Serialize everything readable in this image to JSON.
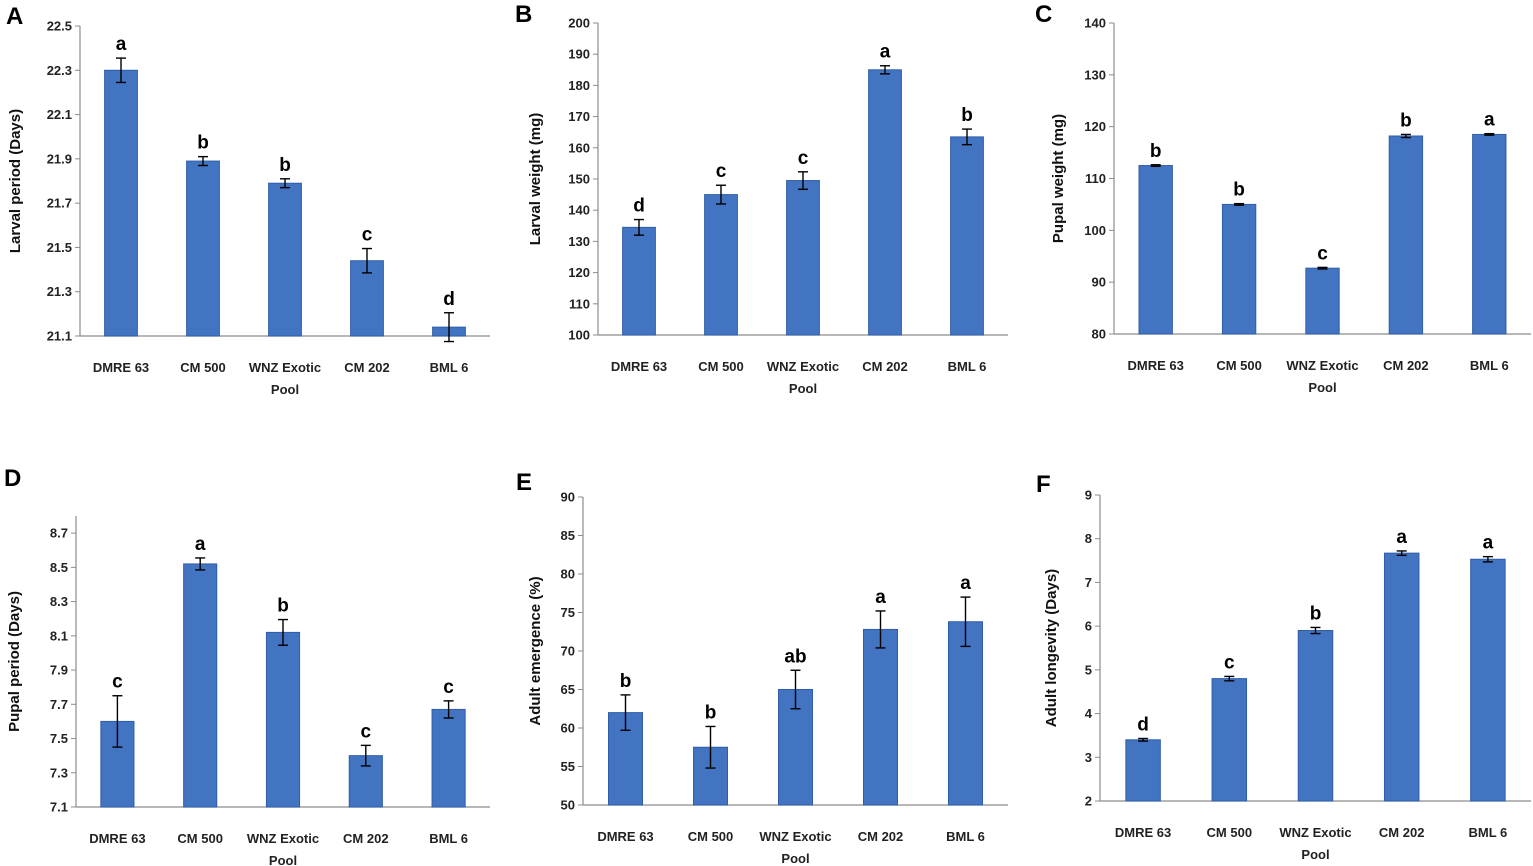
{
  "colors": {
    "bar": "#4274c2",
    "bar_edge": "#2f5ea8",
    "axis": "#8c8c8c",
    "error": "#000000"
  },
  "chart_data": [
    {
      "panel": "A",
      "type": "bar",
      "categories": [
        "DMRE 63",
        "CM 500",
        "WNZ Exotic Pool",
        "CM 202",
        "BML 6"
      ],
      "values": [
        22.3,
        21.89,
        21.79,
        21.44,
        21.14
      ],
      "errors": [
        0.055,
        0.02,
        0.02,
        0.055,
        0.065
      ],
      "significance": [
        "a",
        "b",
        "b",
        "c",
        "d"
      ],
      "ylabel": "Larval period (Days)",
      "ylim": [
        21.1,
        22.5
      ],
      "yticks": [
        21.1,
        21.3,
        21.5,
        21.7,
        21.9,
        22.1,
        22.3,
        22.5
      ],
      "ytick_labels": [
        "21.1",
        "21.3",
        "21.5",
        "21.7",
        "21.9",
        "22.1",
        "22.3",
        "22.5"
      ]
    },
    {
      "panel": "B",
      "type": "bar",
      "categories": [
        "DMRE 63",
        "CM 500",
        "WNZ Exotic Pool",
        "CM 202",
        "BML 6"
      ],
      "values": [
        134.5,
        145,
        149.5,
        185,
        163.5
      ],
      "errors": [
        2.5,
        3,
        2.8,
        1.3,
        2.5
      ],
      "significance": [
        "d",
        "c",
        "c",
        "a",
        "b"
      ],
      "ylabel": "Larval weight (mg)",
      "ylim": [
        100,
        200
      ],
      "yticks": [
        100,
        110,
        120,
        130,
        140,
        150,
        160,
        170,
        180,
        190,
        200
      ],
      "ytick_labels": [
        "100",
        "110",
        "120",
        "130",
        "140",
        "150",
        "160",
        "170",
        "180",
        "190",
        "200"
      ]
    },
    {
      "panel": "C",
      "type": "bar",
      "categories": [
        "DMRE 63",
        "CM 500",
        "WNZ Exotic Pool",
        "CM 202",
        "BML 6"
      ],
      "values": [
        112.5,
        105,
        92.7,
        118.2,
        118.5
      ],
      "errors": [
        0.15,
        0.15,
        0.15,
        0.3,
        0.15
      ],
      "significance": [
        "b",
        "b",
        "c",
        "b",
        "a"
      ],
      "ylabel": "Pupal weight (mg)",
      "ylim": [
        80,
        140
      ],
      "yticks": [
        80,
        90,
        100,
        110,
        120,
        130,
        140
      ],
      "ytick_labels": [
        "80",
        "90",
        "100",
        "110",
        "120",
        "130",
        "140"
      ]
    },
    {
      "panel": "D",
      "type": "bar",
      "categories": [
        "DMRE 63",
        "CM 500",
        "WNZ Exotic Pool",
        "CM 202",
        "BML 6"
      ],
      "values": [
        7.6,
        8.52,
        8.12,
        7.4,
        7.67
      ],
      "errors": [
        0.15,
        0.035,
        0.075,
        0.06,
        0.05
      ],
      "significance": [
        "c",
        "a",
        "b",
        "c",
        "c"
      ],
      "ylabel": "Pupal period (Days)",
      "ylim": [
        7.1,
        8.8
      ],
      "yticks": [
        7.1,
        7.3,
        7.5,
        7.7,
        7.9,
        8.1,
        8.3,
        8.5,
        8.7
      ],
      "ytick_labels": [
        "7.1",
        "7.3",
        "7.5",
        "7.7",
        "7.9",
        "8.1",
        "8.3",
        "8.5",
        "8.7"
      ]
    },
    {
      "panel": "E",
      "type": "bar",
      "categories": [
        "DMRE 63",
        "CM 500",
        "WNZ Exotic Pool",
        "CM 202",
        "BML 6"
      ],
      "values": [
        62,
        57.5,
        65,
        72.8,
        73.8
      ],
      "errors": [
        2.3,
        2.7,
        2.5,
        2.4,
        3.2
      ],
      "significance": [
        "b",
        "b",
        "ab",
        "a",
        "a"
      ],
      "ylabel": "Adult emergence (%)",
      "ylim": [
        50,
        90
      ],
      "yticks": [
        50,
        55,
        60,
        65,
        70,
        75,
        80,
        85,
        90
      ],
      "ytick_labels": [
        "50",
        "55",
        "60",
        "65",
        "70",
        "75",
        "80",
        "85",
        "90"
      ]
    },
    {
      "panel": "F",
      "type": "bar",
      "categories": [
        "DMRE 63",
        "CM 500",
        "WNZ Exotic Pool",
        "CM 202",
        "BML 6"
      ],
      "values": [
        3.4,
        4.8,
        5.9,
        7.67,
        7.53
      ],
      "errors": [
        0.03,
        0.05,
        0.07,
        0.05,
        0.06
      ],
      "significance": [
        "d",
        "c",
        "b",
        "a",
        "a"
      ],
      "ylabel": "Adult longevity (Days)",
      "ylim": [
        2,
        9
      ],
      "yticks": [
        2,
        3,
        4,
        5,
        6,
        7,
        8,
        9
      ],
      "ytick_labels": [
        "2",
        "3",
        "4",
        "5",
        "6",
        "7",
        "8",
        "9"
      ]
    }
  ]
}
